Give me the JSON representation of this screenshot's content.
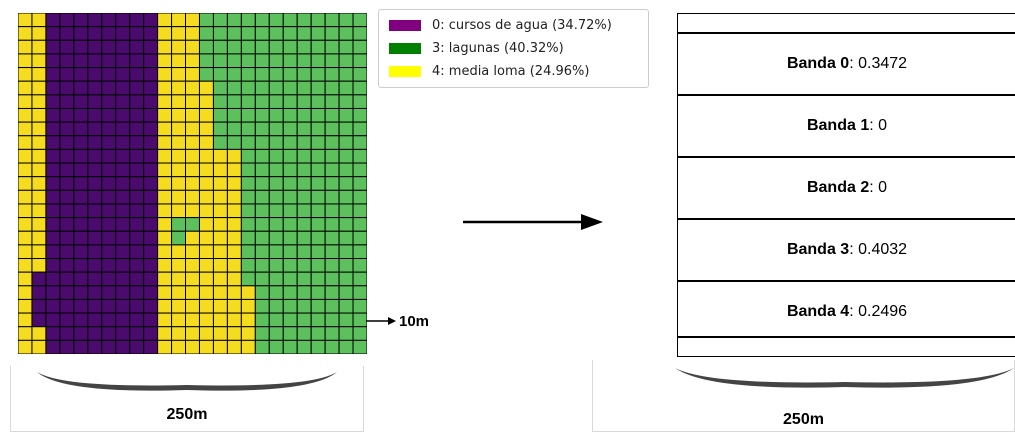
{
  "legend": {
    "items": [
      {
        "label": "0: cursos de agua (34.72%)",
        "color": "#800080"
      },
      {
        "label": "3: lagunas (40.32%)",
        "color": "#008000"
      },
      {
        "label": "4: media loma (24.96%)",
        "color": "#ffff00"
      }
    ]
  },
  "grid": {
    "rows": 25,
    "cols": 25,
    "colors": {
      "0": "#4b0a6e",
      "3": "#5cc05c",
      "4": "#f5dc1e"
    },
    "yellow_end": [
      2,
      2,
      2,
      2,
      2,
      2,
      2,
      2,
      2,
      2,
      2,
      2,
      2,
      2,
      2,
      2,
      2,
      2,
      2,
      1,
      1,
      1,
      1,
      2,
      2
    ],
    "purple_end": [
      10,
      10,
      10,
      10,
      10,
      10,
      10,
      10,
      10,
      10,
      10,
      10,
      10,
      10,
      10,
      10,
      10,
      10,
      10,
      10,
      10,
      10,
      10,
      10,
      10
    ],
    "green_start": [
      13,
      13,
      13,
      13,
      13,
      14,
      14,
      14,
      14,
      14,
      16,
      16,
      16,
      16,
      16,
      16,
      16,
      16,
      16,
      16,
      17,
      17,
      17,
      17,
      17
    ],
    "green_islands": [
      [
        15,
        11
      ],
      [
        15,
        12
      ],
      [
        16,
        11
      ]
    ]
  },
  "scale": {
    "cell_label": "10m",
    "width_label_left": "250m",
    "width_label_right": "250m"
  },
  "bands": [
    {
      "name": "Banda 0",
      "value": ": 0.3472"
    },
    {
      "name": "Banda 1",
      "value": ": 0"
    },
    {
      "name": "Banda 2",
      "value": ": 0"
    },
    {
      "name": "Banda 3",
      "value": ": 0.4032"
    },
    {
      "name": "Banda 4",
      "value": ": 0.2496"
    }
  ]
}
